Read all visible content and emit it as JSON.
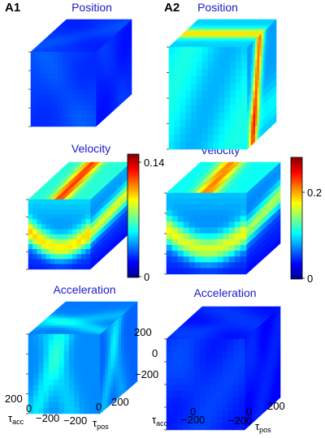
{
  "chart_data": {
    "type": "heatmap",
    "panels": [
      {
        "label": "A1",
        "cubes": [
          {
            "title": "Position",
            "max_level": 0.2,
            "pattern": "diagonal-band"
          },
          {
            "title": "Velocity",
            "max_level": 0.95,
            "pattern": "horizontal-ridge"
          },
          {
            "title": "Acceleration",
            "max_level": 0.55,
            "pattern": "oblique-streak"
          }
        ],
        "colorbar": {
          "min": 0,
          "max": 0.14,
          "tick_labels": [
            "0.14",
            "0"
          ]
        }
      },
      {
        "label": "A2",
        "cubes": [
          {
            "title": "Position",
            "max_level": 1.0,
            "pattern": "vertical-stripe"
          },
          {
            "title": "Velocity",
            "max_level": 0.85,
            "pattern": "horizontal-ridge"
          },
          {
            "title": "Acceleration",
            "max_level": 0.35,
            "pattern": "faint-blobs"
          }
        ],
        "colorbar": {
          "min": 0,
          "max": 0.28,
          "tick_labels": [
            "0.2",
            "0"
          ]
        }
      }
    ],
    "axes": {
      "left_panel": {
        "t_acc_ticks": [
          "200",
          "0",
          "−200"
        ],
        "t_pos_ticks": [
          "−200",
          "0",
          "200"
        ]
      },
      "right_panel": {
        "vertical_ticks": [
          "200",
          "0",
          "−200"
        ],
        "t_acc_ticks": [
          "0",
          "−200"
        ],
        "t_pos_ticks": [
          "−200",
          "0",
          "200"
        ]
      },
      "t_acc_label_main": "τ",
      "t_acc_label_sub": "acc",
      "t_pos_label_main": "τ",
      "t_pos_label_sub": "pos"
    }
  }
}
